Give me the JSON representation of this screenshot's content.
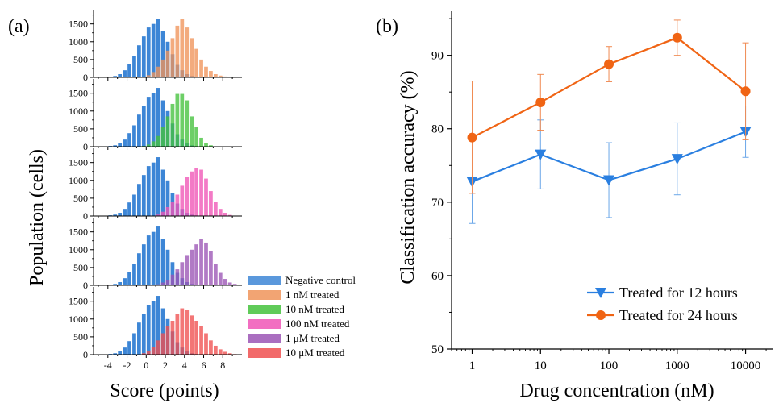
{
  "figure": {
    "panel_a_label": "(a)",
    "panel_b_label": "(b)"
  },
  "colors": {
    "negative": "#3d86d6",
    "nM1": "#f0945a",
    "nM10": "#44c23c",
    "nM100": "#f055b6",
    "uM1": "#9b55b5",
    "uM10": "#f05050",
    "line12": "#2a7fe0",
    "line24": "#f06414",
    "err12": "#6aa6e8",
    "err24": "#f08a52"
  },
  "chart_data": [
    {
      "type": "bar",
      "panel": "a",
      "xlabel": "Score (points)",
      "ylabel": "Population (cells)",
      "x_ticks": [
        "-4",
        "-2",
        "0",
        "2",
        "4",
        "6",
        "8"
      ],
      "y_ticks": [
        "0",
        "500",
        "1000",
        "1500"
      ],
      "xlim": [
        -5.5,
        10
      ],
      "ylim": [
        0,
        1900
      ],
      "bin_width": 0.5,
      "negative_control": {
        "name": "Negative control",
        "bin_start": -4,
        "values": [
          20,
          40,
          90,
          200,
          380,
          600,
          900,
          1150,
          1400,
          1500,
          1650,
          1300,
          1000,
          650,
          350,
          200,
          90,
          40,
          15,
          5
        ]
      },
      "treated": [
        {
          "name": "1 nM treated",
          "bin_start": -0.5,
          "values": [
            20,
            60,
            150,
            300,
            500,
            750,
            1100,
            1450,
            1650,
            1400,
            1100,
            800,
            500,
            300,
            180,
            90,
            50,
            25,
            10,
            5
          ]
        },
        {
          "name": "10 nM treated",
          "bin_start": -0.5,
          "values": [
            20,
            60,
            150,
            300,
            550,
            850,
            1200,
            1480,
            1480,
            1300,
            850,
            550,
            250,
            100,
            40,
            10
          ]
        },
        {
          "name": "100 nM treated",
          "bin_start": 1.0,
          "values": [
            40,
            120,
            250,
            400,
            600,
            850,
            1100,
            1250,
            1350,
            1300,
            1050,
            700,
            400,
            200,
            90,
            30,
            10
          ]
        },
        {
          "name": "1 μM treated",
          "bin_start": 1.0,
          "values": [
            30,
            80,
            150,
            300,
            450,
            650,
            850,
            1000,
            1150,
            1300,
            1200,
            950,
            600,
            350,
            180,
            80,
            40,
            15
          ]
        },
        {
          "name": "10 μM treated",
          "bin_start": -1.0,
          "values": [
            10,
            40,
            100,
            220,
            400,
            600,
            800,
            950,
            1150,
            1300,
            1250,
            1100,
            950,
            800,
            600,
            400,
            250,
            150,
            80,
            40,
            15,
            5
          ]
        }
      ],
      "legend": [
        "Negative control",
        "1 nM treated",
        "10 nM treated",
        "100 nM treated",
        "1 μM treated",
        "10 μM treated"
      ]
    },
    {
      "type": "line",
      "panel": "b",
      "xlabel": "Drug concentration (nM)",
      "ylabel": "Classification accuracy (%)",
      "x_scale": "log",
      "x": [
        1,
        10,
        100,
        1000,
        10000
      ],
      "x_tick_labels": [
        "1",
        "10",
        "100",
        "1000",
        "10000"
      ],
      "y_ticks": [
        "50",
        "60",
        "70",
        "80",
        "90"
      ],
      "ylim": [
        50,
        96
      ],
      "xlim": [
        0.5,
        30000
      ],
      "series": [
        {
          "name": "Treated for 12 hours",
          "marker": "triangle-down",
          "values": [
            72.8,
            76.5,
            73.0,
            75.9,
            79.6
          ],
          "err_low": [
            5.7,
            4.7,
            5.1,
            4.9,
            3.5
          ],
          "err_high": [
            5.7,
            4.7,
            5.1,
            4.9,
            3.5
          ]
        },
        {
          "name": "Treated for 24 hours",
          "marker": "circle",
          "values": [
            78.8,
            83.6,
            88.8,
            92.4,
            85.1
          ],
          "err_low": [
            7.6,
            3.8,
            2.4,
            2.4,
            6.6
          ],
          "err_high": [
            7.7,
            3.8,
            2.4,
            2.4,
            6.6
          ]
        }
      ],
      "legend_position": "bottom-right"
    }
  ]
}
